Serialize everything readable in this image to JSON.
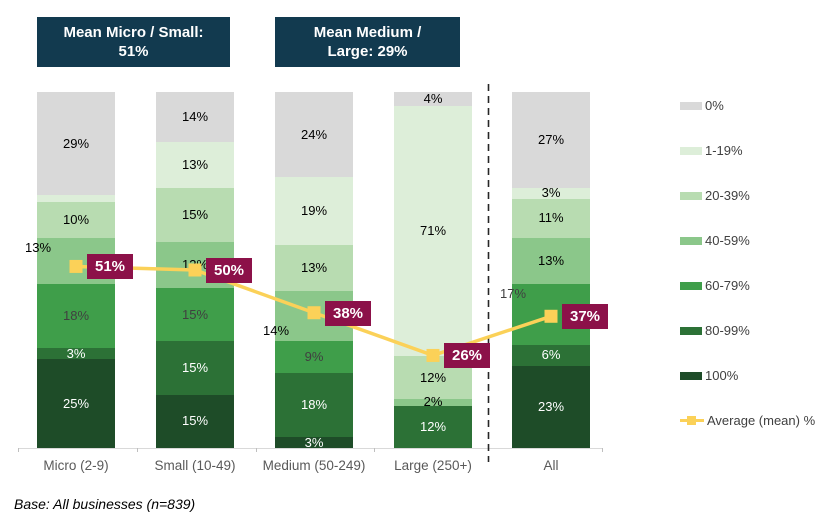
{
  "title_boxes": [
    {
      "line1": "Mean Micro / Small:",
      "line2": "51%"
    },
    {
      "line1": "Mean Medium /",
      "line2": "Large: 29%"
    }
  ],
  "base_note": "Base: All businesses (n=839)",
  "colors": {
    "header_bg": "#123a4f",
    "header_text": "#ffffff",
    "avg_line": "#fbd158",
    "avg_marker": "#fbd158",
    "avg_label_bg": "#8c1149",
    "avg_label_text": "#ffffff",
    "axis_line": "#d9d9d9",
    "axis_tick": "#bfbfbf",
    "axis_text": "#595959",
    "separator_line": "#262626"
  },
  "chart_data": {
    "type": "stacked_bar_with_line",
    "title": "",
    "xlabel": "",
    "ylabel": "",
    "ylim": [
      0,
      100
    ],
    "legend_position": "right",
    "grid": false,
    "categories": [
      "Micro (2-9)",
      "Small (10-49)",
      "Medium (50-249)",
      "Large (250+)",
      "All"
    ],
    "bands": [
      {
        "name": "0%",
        "color": "#d9d9d9",
        "label_color": "#000000"
      },
      {
        "name": "1-19%",
        "color": "#ddeed9",
        "label_color": "#000000"
      },
      {
        "name": "20-39%",
        "color": "#b8dcb1",
        "label_color": "#000000"
      },
      {
        "name": "40-59%",
        "color": "#8bc78a",
        "label_color": "#000000"
      },
      {
        "name": "60-79%",
        "color": "#3f9e4a",
        "label_color": "#404040"
      },
      {
        "name": "80-99%",
        "color": "#2c7136",
        "label_color": "#ffffff"
      },
      {
        "name": "100%",
        "color": "#1e4c28",
        "label_color": "#ffffff"
      }
    ],
    "series": [
      {
        "category": "Micro (2-9)",
        "values": [
          29,
          2,
          10,
          13,
          18,
          3,
          25
        ],
        "hide_labels": [
          1
        ],
        "label_hints": {
          "3": "left-top"
        }
      },
      {
        "category": "Small (10-49)",
        "values": [
          14,
          13,
          15,
          13,
          15,
          15,
          15
        ],
        "hide_labels": [],
        "label_hints": {}
      },
      {
        "category": "Medium (50-249)",
        "values": [
          24,
          19,
          13,
          14,
          9,
          18,
          3
        ],
        "hide_labels": [],
        "label_hints": {
          "3": "left-bottom"
        }
      },
      {
        "category": "Large (250+)",
        "values": [
          4,
          71,
          12,
          2,
          0,
          12,
          0
        ],
        "hide_labels": [],
        "label_hints": {}
      },
      {
        "category": "All",
        "values": [
          27,
          3,
          11,
          13,
          17,
          6,
          23
        ],
        "hide_labels": [],
        "label_hints": {
          "4": "left-top"
        }
      }
    ],
    "average_series": {
      "name": "Average (mean) %",
      "values": [
        51,
        50,
        38,
        26,
        37
      ]
    },
    "separator_after_category": "Large (250+)"
  }
}
